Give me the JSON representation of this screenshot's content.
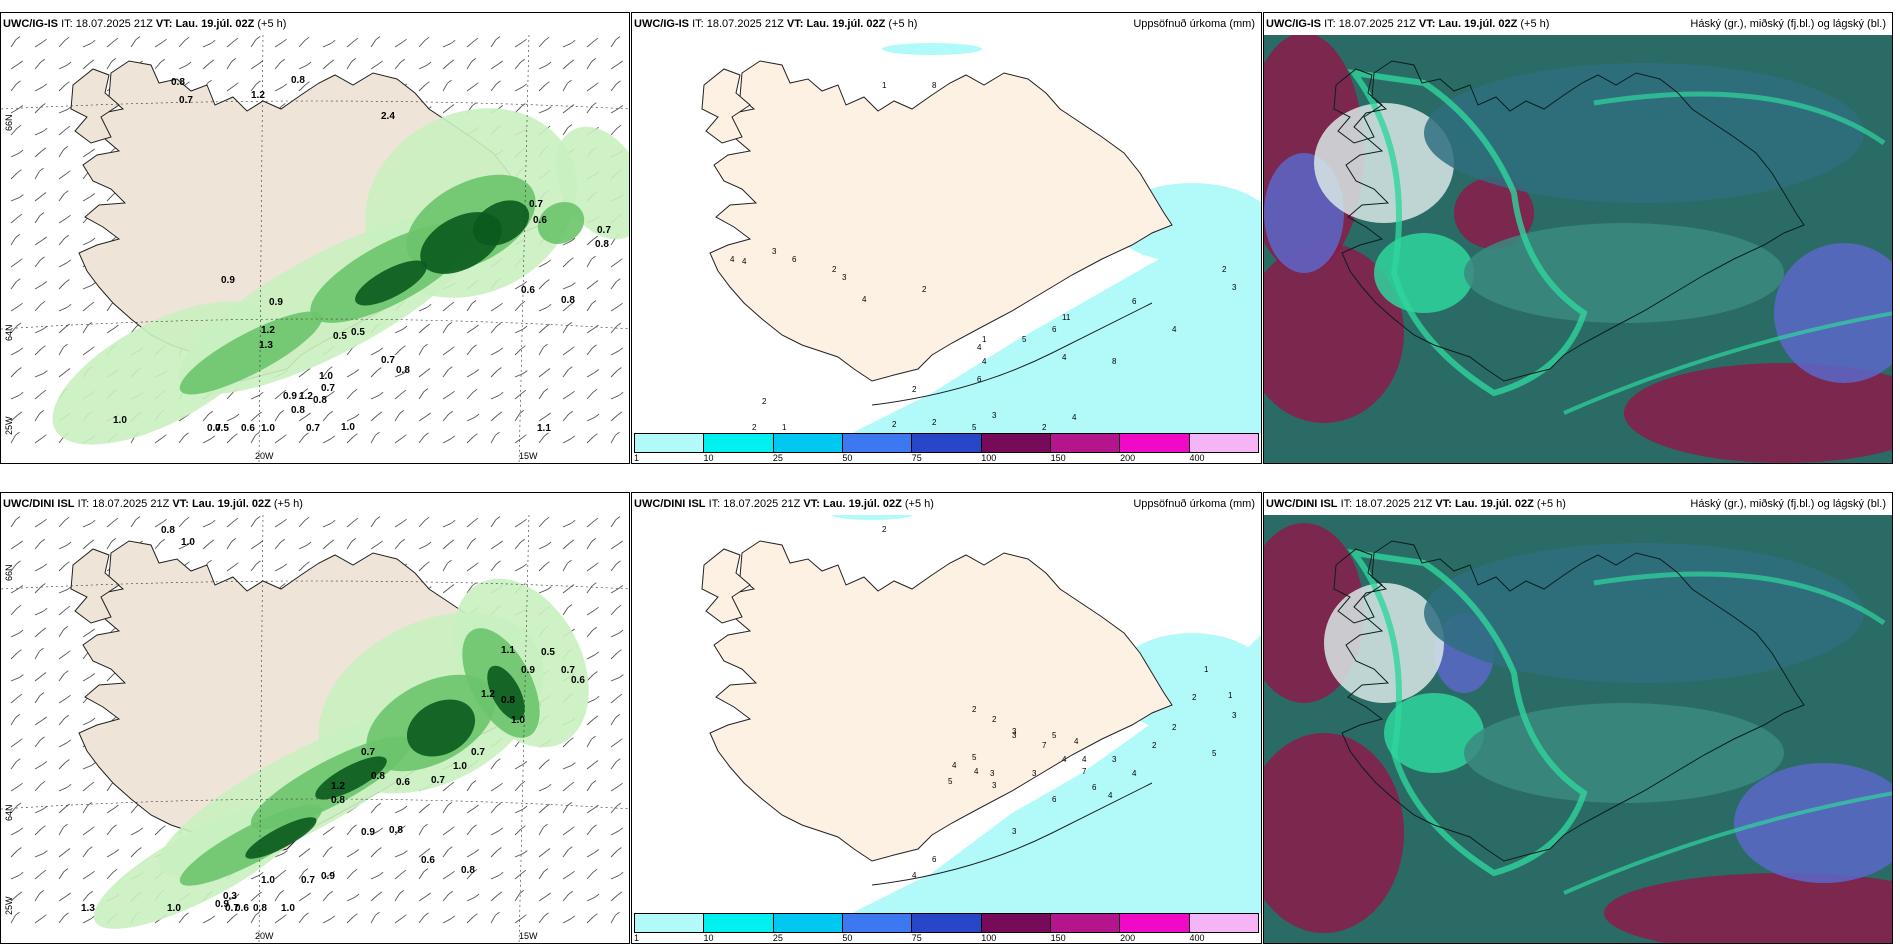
{
  "panels": [
    {
      "model": "UWC/IG-IS",
      "it_label": "IT:",
      "it_value": "18.07.2025 21Z",
      "vt_label": "VT:",
      "vt_value": "Lau. 19.júl. 02Z",
      "lead": "(+5 h)",
      "right_title": "",
      "axis": {
        "lat_top": "66N",
        "lat_mid": "64N",
        "lat_bottom": "25W",
        "lon_a": "20W",
        "lon_b": "15W"
      },
      "values": [
        "0.8",
        "0.7",
        "1.2",
        "0.8",
        "2.4",
        "0.9",
        "0.9",
        "1.2",
        "1.3",
        "0.5",
        "0.5",
        "0.7",
        "0.8",
        "1.0",
        "0.7",
        "0.8",
        "0.9",
        "1.2",
        "0.8",
        "1.0",
        "0.6",
        "0.7",
        "0.5",
        "0.7",
        "1.0",
        "0.7",
        "0.6",
        "0.7",
        "0.8",
        "0.8",
        "0.6",
        "1.1",
        "1.0"
      ]
    },
    {
      "model": "UWC/IG-IS",
      "it_label": "IT:",
      "it_value": "18.07.2025 21Z",
      "vt_label": "VT:",
      "vt_value": "Lau. 19.júl. 02Z",
      "lead": "(+5 h)",
      "right_title": "Uppsöfnuð úrkoma (mm)",
      "values": [
        "1",
        "8",
        "4",
        "4",
        "3",
        "6",
        "2",
        "3",
        "4",
        "2",
        "2",
        "1",
        "2",
        "11",
        "4",
        "4",
        "6",
        "5",
        "6",
        "8",
        "2",
        "4",
        "4",
        "3",
        "2",
        "2",
        "1",
        "2",
        "5",
        "6",
        "4",
        "3",
        "2"
      ]
    },
    {
      "model": "UWC/IG-IS",
      "it_label": "IT:",
      "it_value": "18.07.2025 21Z",
      "vt_label": "VT:",
      "vt_value": "Lau. 19.júl. 02Z",
      "lead": "(+5 h)",
      "right_title": "Háský (gr.), miðský (fj.bl.) og lágský (bl.)"
    },
    {
      "model": "UWC/DINI ISL",
      "it_label": "IT:",
      "it_value": "18.07.2025 21Z",
      "vt_label": "VT:",
      "vt_value": "Lau. 19.júl. 02Z",
      "lead": "(+5 h)",
      "right_title": "",
      "axis": {
        "lat_top": "66N",
        "lat_mid": "64N",
        "lat_bottom": "25W",
        "lon_a": "20W",
        "lon_b": "15W"
      },
      "values": [
        "0.8",
        "1.0",
        "0.7",
        "0.8",
        "1.2",
        "0.8",
        "0.6",
        "0.7",
        "0.9",
        "0.8",
        "1.0",
        "0.7",
        "1.1",
        "0.9",
        "0.5",
        "0.7",
        "0.6",
        "1.2",
        "0.8",
        "1.0",
        "0.9",
        "0.7",
        "1.0",
        "0.6",
        "0.8",
        "0.7",
        "0.3",
        "0.9",
        "1.0",
        "1.3",
        "1.0",
        "0.6",
        "0.8"
      ]
    },
    {
      "model": "UWC/DINI ISL",
      "it_label": "IT:",
      "it_value": "18.07.2025 21Z",
      "vt_label": "VT:",
      "vt_value": "Lau. 19.júl. 02Z",
      "lead": "(+5 h)",
      "right_title": "Uppsöfnuð úrkoma (mm)",
      "values": [
        "2",
        "2",
        "2",
        "3",
        "4",
        "5",
        "5",
        "4",
        "3",
        "3",
        "4",
        "7",
        "6",
        "4",
        "5",
        "7",
        "3",
        "3",
        "6",
        "4",
        "3",
        "4",
        "2",
        "2",
        "1",
        "1",
        "3",
        "2",
        "5",
        "4",
        "3",
        "6",
        "4"
      ]
    },
    {
      "model": "UWC/DINI ISL",
      "it_label": "IT:",
      "it_value": "18.07.2025 21Z",
      "vt_label": "VT:",
      "vt_value": "Lau. 19.júl. 02Z",
      "lead": "(+5 h)",
      "right_title": "Háský (gr.), miðský (fj.bl.) og lágský (bl.)"
    }
  ],
  "legend": {
    "ticks": [
      "1",
      "10",
      "25",
      "50",
      "75",
      "100",
      "150",
      "200",
      "400"
    ],
    "colors": [
      "#b2fafa",
      "#00f0f0",
      "#00c8f0",
      "#3c78f0",
      "#2846c8",
      "#780a5a",
      "#b4148c",
      "#f00ac8",
      "#f5b4f5"
    ]
  },
  "colors": {
    "land": "#efe4d8",
    "land_light": "#fdf1e4",
    "precip_cyan": "#b2fafa",
    "green_light": "#c9efc0",
    "green_mid": "#6cc46c",
    "green_dark": "#0a5a1e",
    "cloud_teal": "#2a6b66",
    "cloud_blue": "#5c67c9",
    "cloud_red": "#8a1b4a",
    "cloud_mint": "#2fd59c"
  }
}
